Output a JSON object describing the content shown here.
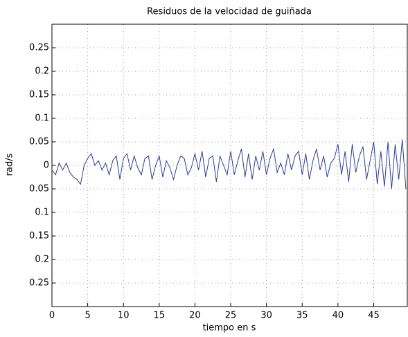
{
  "chart_data": {
    "type": "line",
    "title": "Residuos de la velocidad de guiñada",
    "x_label": "tiempo en s",
    "y_label": "rad/s",
    "x": [
      0,
      0.5,
      1,
      1.5,
      2,
      2.5,
      3,
      3.5,
      4,
      4.5,
      5,
      5.5,
      6,
      6.5,
      7,
      7.5,
      8,
      8.5,
      9,
      9.5,
      10,
      10.5,
      11,
      11.5,
      12,
      12.5,
      13,
      13.5,
      14,
      14.5,
      15,
      15.5,
      16,
      16.5,
      17,
      17.5,
      18,
      18.5,
      19,
      19.5,
      20,
      20.5,
      21,
      21.5,
      22,
      22.5,
      23,
      23.5,
      24,
      24.5,
      25,
      25.5,
      26,
      26.5,
      27,
      27.5,
      28,
      28.5,
      29,
      29.5,
      30,
      30.5,
      31,
      31.5,
      32,
      32.5,
      33,
      33.5,
      34,
      34.5,
      35,
      35.5,
      36,
      36.5,
      37,
      37.5,
      38,
      38.5,
      39,
      39.5,
      40,
      40.5,
      41,
      41.5,
      42,
      42.5,
      43,
      43.5,
      44,
      44.5,
      45,
      45.5,
      46,
      46.5,
      47,
      47.5,
      48,
      48.5,
      49,
      49.5
    ],
    "series": [
      {
        "color": "#2b3d96",
        "values": [
          -0.01,
          -0.02,
          0.005,
          -0.01,
          0.005,
          -0.015,
          -0.025,
          -0.03,
          -0.04,
          0.0,
          0.015,
          0.025,
          0.0,
          0.01,
          -0.01,
          0.005,
          -0.02,
          0.01,
          0.02,
          -0.03,
          0.015,
          0.025,
          -0.01,
          0.02,
          -0.005,
          -0.02,
          0.015,
          0.02,
          -0.03,
          0.0,
          0.02,
          -0.025,
          0.01,
          -0.005,
          -0.03,
          0.0,
          0.02,
          0.015,
          -0.02,
          -0.005,
          0.025,
          -0.01,
          0.03,
          -0.025,
          0.015,
          0.02,
          -0.035,
          0.02,
          0.0,
          -0.02,
          0.03,
          -0.02,
          0.01,
          0.035,
          -0.025,
          0.025,
          -0.03,
          0.02,
          -0.01,
          0.03,
          -0.02,
          0.015,
          0.035,
          -0.015,
          0.005,
          -0.02,
          0.025,
          -0.01,
          0.02,
          0.03,
          -0.02,
          0.025,
          -0.03,
          0.01,
          0.035,
          -0.01,
          0.02,
          -0.025,
          0.005,
          0.015,
          0.045,
          -0.02,
          0.03,
          -0.035,
          0.045,
          -0.015,
          0.02,
          0.04,
          -0.03,
          0.01,
          0.05,
          -0.04,
          0.03,
          -0.045,
          0.05,
          -0.05,
          0.045,
          -0.03,
          0.055,
          -0.05
        ]
      }
    ],
    "xlim": [
      0,
      49.7
    ],
    "xticks": [
      0,
      5,
      10,
      15,
      20,
      25,
      30,
      35,
      40,
      45
    ],
    "ylim": [
      -0.3,
      0.3
    ],
    "yticks": [
      {
        "value": -0.25,
        "label": "0.25"
      },
      {
        "value": -0.2,
        "label": "0.2"
      },
      {
        "value": -0.15,
        "label": "0.15"
      },
      {
        "value": -0.1,
        "label": "0.1"
      },
      {
        "value": -0.05,
        "label": "0.05"
      },
      0,
      0.05,
      0.1,
      0.15,
      0.2,
      0.25
    ],
    "grid": true
  }
}
